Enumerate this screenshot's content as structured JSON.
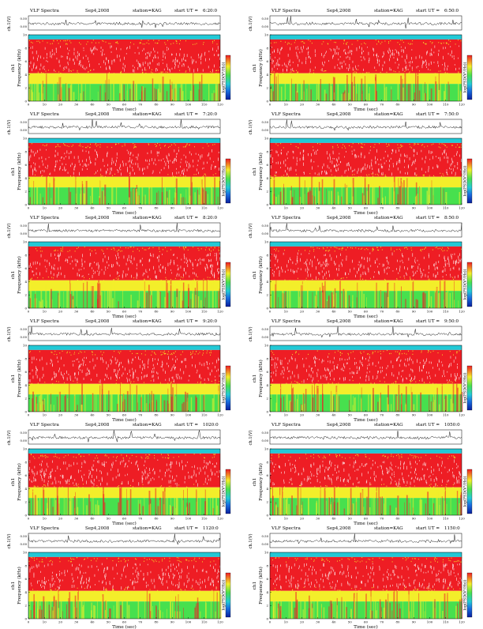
{
  "header": {
    "title": "VLF Spectra",
    "date": "Sep4,2008",
    "station": "station=KAG",
    "start_prefix": "start  UT ="
  },
  "axes": {
    "xlabel": "Time  (sec)",
    "ylabel": "Frequency  (kHz)",
    "channel_label": "ch1",
    "ts_ylabel": "ch.1(V)",
    "cbar_label": "log(PSD(V²/Hz))"
  },
  "colors": {
    "low": "#0a1f9e",
    "cyan": "#22c9d6",
    "green": "#47e04e",
    "yellow": "#f3ee2a",
    "red": "#ee1d24"
  },
  "chart_data": [
    {
      "type": "heatmap",
      "title": "VLF Spectra",
      "start_ut": "6:20:0",
      "xlabel": "Time  (sec)",
      "ylabel": "Frequency  (kHz)",
      "xlim": [
        0,
        120
      ],
      "ylim": [
        0,
        10
      ],
      "xticks": [
        0,
        10,
        20,
        30,
        40,
        50,
        60,
        70,
        80,
        90,
        100,
        110,
        120
      ],
      "yticks": [
        0,
        2,
        4,
        6,
        8,
        10
      ],
      "ts_yticks": [
        "0.00",
        "0.50"
      ]
    },
    {
      "type": "heatmap",
      "title": "VLF Spectra",
      "start_ut": "6:50:0",
      "xlabel": "Time  (sec)",
      "ylabel": "Frequency  (kHz)",
      "xlim": [
        0,
        120
      ],
      "ylim": [
        0,
        10
      ],
      "xticks": [
        0,
        10,
        20,
        30,
        40,
        50,
        60,
        70,
        80,
        90,
        100,
        110,
        120
      ],
      "yticks": [
        0,
        2,
        4,
        6,
        8,
        10
      ],
      "ts_yticks": [
        "0.00",
        "0.50"
      ]
    },
    {
      "type": "heatmap",
      "title": "VLF Spectra",
      "start_ut": "7:20:0",
      "xlabel": "Time  (sec)",
      "ylabel": "Frequency  (kHz)",
      "xlim": [
        0,
        120
      ],
      "ylim": [
        0,
        10
      ],
      "xticks": [
        0,
        10,
        20,
        30,
        40,
        50,
        60,
        70,
        80,
        90,
        100,
        110,
        120
      ],
      "yticks": [
        0,
        2,
        4,
        6,
        8,
        10
      ],
      "ts_yticks": [
        "0.00",
        "0.50"
      ]
    },
    {
      "type": "heatmap",
      "title": "VLF Spectra",
      "start_ut": "7:50:0",
      "xlabel": "Time  (sec)",
      "ylabel": "Frequency  (kHz)",
      "xlim": [
        0,
        120
      ],
      "ylim": [
        0,
        10
      ],
      "xticks": [
        0,
        10,
        20,
        30,
        40,
        50,
        60,
        70,
        80,
        90,
        100,
        110,
        120
      ],
      "yticks": [
        0,
        2,
        4,
        6,
        8,
        10
      ],
      "ts_yticks": [
        "0.00",
        "0.50"
      ]
    },
    {
      "type": "heatmap",
      "title": "VLF Spectra",
      "start_ut": "8:20:0",
      "xlabel": "Time  (sec)",
      "ylabel": "Frequency  (kHz)",
      "xlim": [
        0,
        120
      ],
      "ylim": [
        0,
        10
      ],
      "xticks": [
        0,
        10,
        20,
        30,
        40,
        50,
        60,
        70,
        80,
        90,
        100,
        110,
        120
      ],
      "yticks": [
        0,
        2,
        4,
        6,
        8,
        10
      ],
      "ts_yticks": [
        "0.00",
        "0.50"
      ]
    },
    {
      "type": "heatmap",
      "title": "VLF Spectra",
      "start_ut": "8:50:0",
      "xlabel": "Time  (sec)",
      "ylabel": "Frequency  (kHz)",
      "xlim": [
        0,
        120
      ],
      "ylim": [
        0,
        10
      ],
      "xticks": [
        0,
        10,
        20,
        30,
        40,
        50,
        60,
        70,
        80,
        90,
        100,
        110,
        120
      ],
      "yticks": [
        0,
        2,
        4,
        6,
        8,
        10
      ],
      "ts_yticks": [
        "0.00",
        "0.50"
      ]
    },
    {
      "type": "heatmap",
      "title": "VLF Spectra",
      "start_ut": "9:20:0",
      "xlabel": "Time  (sec)",
      "ylabel": "Frequency  (kHz)",
      "xlim": [
        0,
        120
      ],
      "ylim": [
        0,
        10
      ],
      "xticks": [
        0,
        10,
        20,
        30,
        40,
        50,
        60,
        70,
        80,
        90,
        100,
        110,
        120
      ],
      "yticks": [
        0,
        2,
        4,
        6,
        8,
        10
      ],
      "ts_yticks": [
        "0.00",
        "0.50"
      ]
    },
    {
      "type": "heatmap",
      "title": "VLF Spectra",
      "start_ut": "9:50:0",
      "xlabel": "Time  (sec)",
      "ylabel": "Frequency  (kHz)",
      "xlim": [
        0,
        120
      ],
      "ylim": [
        0,
        10
      ],
      "xticks": [
        0,
        10,
        20,
        30,
        40,
        50,
        60,
        70,
        80,
        90,
        100,
        110,
        120
      ],
      "yticks": [
        0,
        2,
        4,
        6,
        8,
        10
      ],
      "ts_yticks": [
        "0.00",
        "0.50"
      ]
    },
    {
      "type": "heatmap",
      "title": "VLF Spectra",
      "start_ut": "1020:0",
      "xlabel": "Time  (sec)",
      "ylabel": "Frequency  (kHz)",
      "xlim": [
        0,
        120
      ],
      "ylim": [
        0,
        10
      ],
      "xticks": [
        0,
        10,
        20,
        30,
        40,
        50,
        60,
        70,
        80,
        90,
        100,
        110,
        120
      ],
      "yticks": [
        0,
        2,
        4,
        6,
        8,
        10
      ],
      "ts_yticks": [
        "0.00",
        "0.50"
      ]
    },
    {
      "type": "heatmap",
      "title": "VLF Spectra",
      "start_ut": "1050:0",
      "xlabel": "Time  (sec)",
      "ylabel": "Frequency  (kHz)",
      "xlim": [
        0,
        120
      ],
      "ylim": [
        0,
        10
      ],
      "xticks": [
        0,
        10,
        20,
        30,
        40,
        50,
        60,
        70,
        80,
        90,
        100,
        110,
        120
      ],
      "yticks": [
        0,
        2,
        4,
        6,
        8,
        10
      ],
      "ts_yticks": [
        "0.00",
        "0.50"
      ]
    },
    {
      "type": "heatmap",
      "title": "VLF Spectra",
      "start_ut": "1120:0",
      "xlabel": "Time  (sec)",
      "ylabel": "Frequency  (kHz)",
      "xlim": [
        0,
        120
      ],
      "ylim": [
        0,
        10
      ],
      "xticks": [
        0,
        10,
        20,
        30,
        40,
        50,
        60,
        70,
        80,
        90,
        100,
        110,
        120
      ],
      "yticks": [
        0,
        2,
        4,
        6,
        8,
        10
      ],
      "ts_yticks": [
        "0.00",
        "0.50"
      ]
    },
    {
      "type": "heatmap",
      "title": "VLF Spectra",
      "start_ut": "1150:0",
      "xlabel": "Time  (sec)",
      "ylabel": "Frequency  (kHz)",
      "xlim": [
        0,
        120
      ],
      "ylim": [
        0,
        10
      ],
      "xticks": [
        0,
        10,
        20,
        30,
        40,
        50,
        60,
        70,
        80,
        90,
        100,
        110,
        120
      ],
      "yticks": [
        0,
        2,
        4,
        6,
        8,
        10
      ],
      "ts_yticks": [
        "0.00",
        "0.50"
      ]
    }
  ]
}
